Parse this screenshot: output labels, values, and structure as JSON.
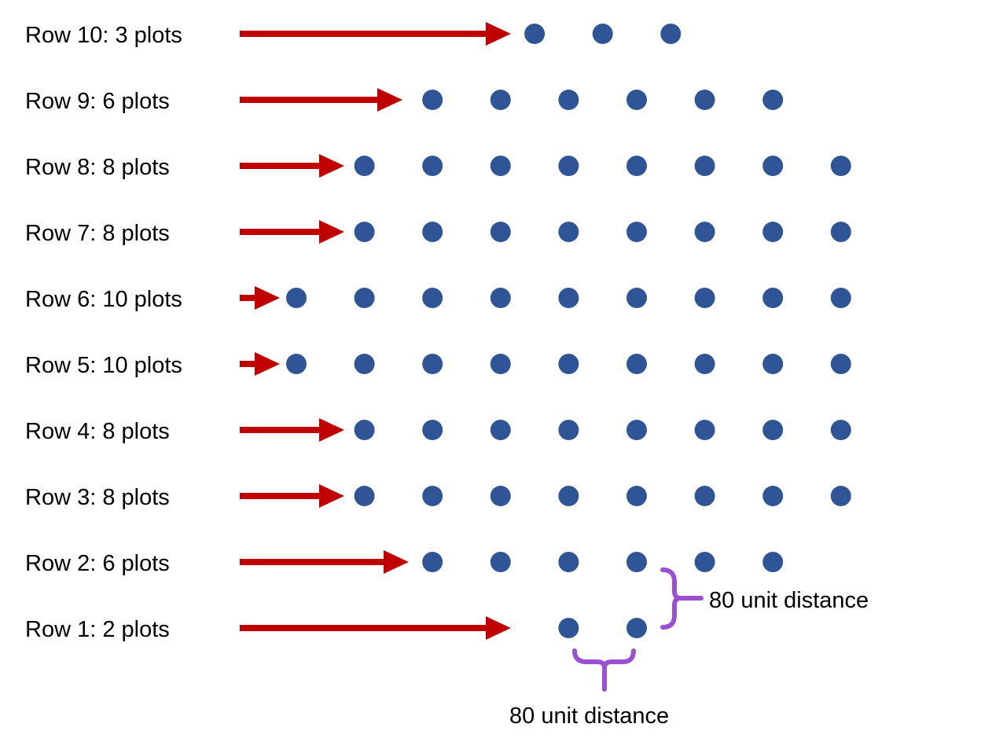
{
  "rows": [
    {
      "label": "Row 10: 3 plots",
      "count": 3
    },
    {
      "label": "Row 9: 6 plots",
      "count": 6
    },
    {
      "label": "Row 8: 8 plots",
      "count": 8
    },
    {
      "label": "Row 7: 8 plots",
      "count": 8
    },
    {
      "label": "Row 6: 10 plots",
      "count": 10
    },
    {
      "label": "Row 5: 10 plots",
      "count": 10
    },
    {
      "label": "Row 4: 8 plots",
      "count": 8
    },
    {
      "label": "Row 3: 8 plots",
      "count": 8
    },
    {
      "label": "Row 2: 6 plots",
      "count": 6
    },
    {
      "label": "Row 1: 2 plots",
      "count": 2
    }
  ],
  "annotations": {
    "vertical_spacing": "80 unit distance",
    "horizontal_spacing": "80 unit distance"
  },
  "colors": {
    "dot": "#2F5597",
    "arrow": "#C00000",
    "brace": "#9B4FD1"
  }
}
